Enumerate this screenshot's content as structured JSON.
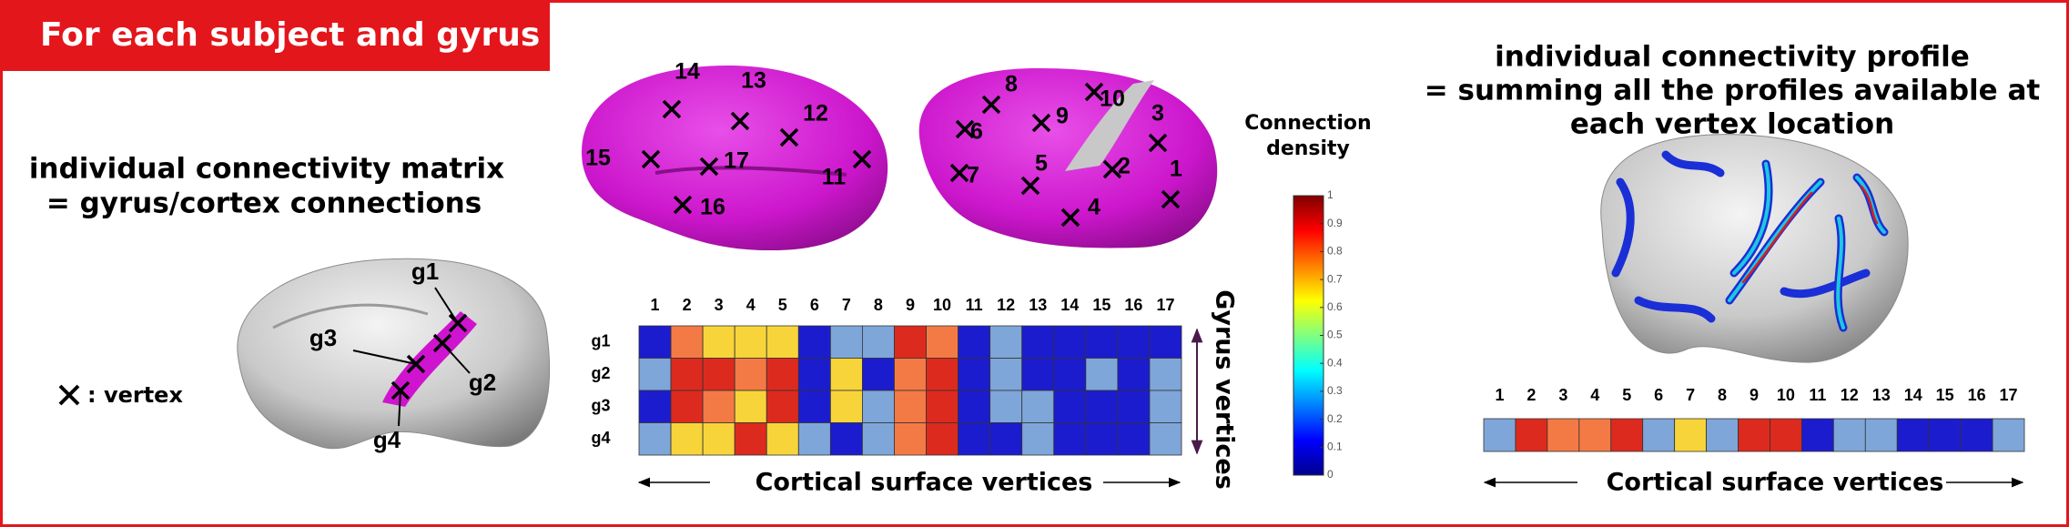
{
  "header": {
    "title": "For each subject and gyrus"
  },
  "left": {
    "heading": [
      "individual connectivity matrix",
      "= gyrus/cortex connections"
    ],
    "legend": ": vertex"
  },
  "gyri": [
    "g1",
    "g2",
    "g3",
    "g4"
  ],
  "vertices": [
    "1",
    "2",
    "3",
    "4",
    "5",
    "6",
    "7",
    "8",
    "9",
    "10",
    "11",
    "12",
    "13",
    "14",
    "15",
    "16",
    "17"
  ],
  "matrix": {
    "cells": [
      [
        "#1c1ccf",
        "#f47a45",
        "#f7d43a",
        "#f7d43a",
        "#f7d43a",
        "#1c1ccf",
        "#7ea6d9",
        "#7ea6d9",
        "#dd2a1e",
        "#f47a45",
        "#1c1ccf",
        "#7ea6d9",
        "#1c1ccf",
        "#1c1ccf",
        "#1c1ccf",
        "#1c1ccf",
        "#1c1ccf"
      ],
      [
        "#7ea6d9",
        "#dd2a1e",
        "#dd2a1e",
        "#f47a45",
        "#dd2a1e",
        "#1c1ccf",
        "#f7d43a",
        "#1c1ccf",
        "#f47a45",
        "#dd2a1e",
        "#1c1ccf",
        "#7ea6d9",
        "#1c1ccf",
        "#1c1ccf",
        "#7ea6d9",
        "#1c1ccf",
        "#7ea6d9"
      ],
      [
        "#1c1ccf",
        "#dd2a1e",
        "#f47a45",
        "#f7d43a",
        "#dd2a1e",
        "#1c1ccf",
        "#f7d43a",
        "#7ea6d9",
        "#f47a45",
        "#dd2a1e",
        "#1c1ccf",
        "#7ea6d9",
        "#7ea6d9",
        "#1c1ccf",
        "#1c1ccf",
        "#1c1ccf",
        "#7ea6d9"
      ],
      [
        "#7ea6d9",
        "#f7d43a",
        "#f7d43a",
        "#dd2a1e",
        "#f7d43a",
        "#7ea6d9",
        "#1c1ccf",
        "#7ea6d9",
        "#f47a45",
        "#dd2a1e",
        "#1c1ccf",
        "#1c1ccf",
        "#7ea6d9",
        "#1c1ccf",
        "#1c1ccf",
        "#1c1ccf",
        "#7ea6d9"
      ]
    ],
    "x_label": "Cortical surface vertices",
    "y_label": "Gyrus vertices"
  },
  "colorbar": {
    "title": [
      "Connection",
      "density"
    ],
    "ticks": [
      "0",
      "0.1",
      "0.2",
      "0.3",
      "0.4",
      "0.5",
      "0.6",
      "0.7",
      "0.8",
      "0.9",
      "1"
    ]
  },
  "right": {
    "heading": [
      "individual connectivity profile",
      "= summing all the profiles available at",
      "each vertex location"
    ],
    "profile": [
      "#7ea6d9",
      "#dd2a1e",
      "#f47a45",
      "#f47a45",
      "#dd2a1e",
      "#7ea6d9",
      "#f7d43a",
      "#7ea6d9",
      "#dd2a1e",
      "#dd2a1e",
      "#1c1ccf",
      "#7ea6d9",
      "#7ea6d9",
      "#1c1ccf",
      "#1c1ccf",
      "#1c1ccf",
      "#7ea6d9"
    ],
    "x_label": "Cortical surface vertices"
  }
}
